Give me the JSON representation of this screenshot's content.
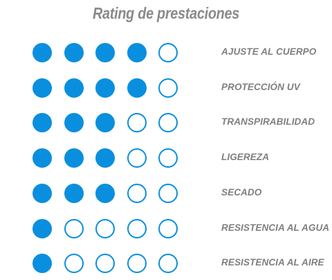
{
  "title": "Rating de prestaciones",
  "colors": {
    "accent": "#0a8fde",
    "text": "#7f7f7f",
    "title": "#8a8a8a"
  },
  "max_rating": 5,
  "rows": [
    {
      "label": "AJUSTE AL CUERPO",
      "rating": 4
    },
    {
      "label": "PROTECCIÓN UV",
      "rating": 4
    },
    {
      "label": "TRANSPIRABILIDAD",
      "rating": 3
    },
    {
      "label": "LIGEREZA",
      "rating": 3
    },
    {
      "label": "SECADO",
      "rating": 3
    },
    {
      "label": "RESISTENCIA AL AGUA",
      "rating": 1
    },
    {
      "label": "RESISTENCIA AL AIRE",
      "rating": 1
    }
  ]
}
